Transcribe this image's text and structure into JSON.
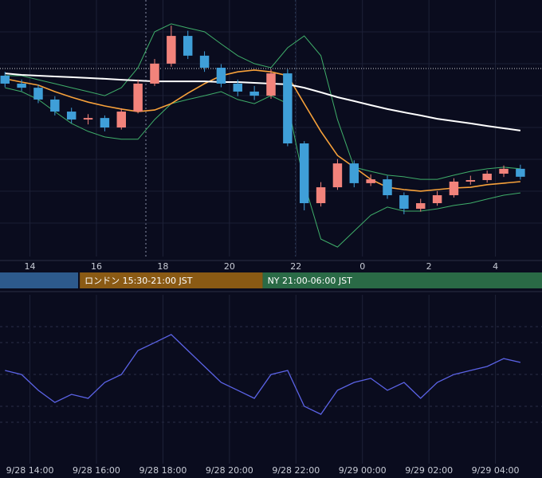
{
  "chart_data": [
    {
      "type": "candlestick",
      "x": [
        13.25,
        13.75,
        14.25,
        14.75,
        15.25,
        15.75,
        16.25,
        16.75,
        17.25,
        17.75,
        18.25,
        18.75,
        19.25,
        19.75,
        20.25,
        20.75,
        21.25,
        21.75,
        22.25,
        22.75,
        23.25,
        23.75,
        24.25,
        24.75,
        25.25,
        25.75,
        26.25,
        26.75,
        27.25,
        27.75,
        28.25,
        28.75
      ],
      "open": [
        70.5,
        67.4,
        65.8,
        61.2,
        56.5,
        53.4,
        54.0,
        50.3,
        56.5,
        67.4,
        75.2,
        86.0,
        78.3,
        73.6,
        67.4,
        64.3,
        62.7,
        71.4,
        44.1,
        20.8,
        27.0,
        36.3,
        28.6,
        30.1,
        23.9,
        18.6,
        20.8,
        23.9,
        29.2,
        29.8,
        32.3,
        34.2
      ],
      "high": [
        72.0,
        69.0,
        67.0,
        62.5,
        58.0,
        55.5,
        55.0,
        57.8,
        69.0,
        77.0,
        90.0,
        88.0,
        80.0,
        75.0,
        69.0,
        66.5,
        73.0,
        73.0,
        45.0,
        29.0,
        38.0,
        37.5,
        32.0,
        31.5,
        25.0,
        22.5,
        25.5,
        30.5,
        31.5,
        33.5,
        35.5,
        35.8
      ],
      "low": [
        66.0,
        64.5,
        59.8,
        55.0,
        52.0,
        51.5,
        48.8,
        49.5,
        55.8,
        66.5,
        74.0,
        77.0,
        72.0,
        66.0,
        62.5,
        61.0,
        61.5,
        43.0,
        18.0,
        19.5,
        26.0,
        27.0,
        27.5,
        22.5,
        16.5,
        17.5,
        19.8,
        23.0,
        28.0,
        28.8,
        31.0,
        30.0
      ],
      "close": [
        67.4,
        65.8,
        61.2,
        56.5,
        53.4,
        54.0,
        50.3,
        56.5,
        67.4,
        75.2,
        86.0,
        78.3,
        73.6,
        67.4,
        64.3,
        62.7,
        71.4,
        44.1,
        20.8,
        27.0,
        36.3,
        28.6,
        30.1,
        23.9,
        18.6,
        20.8,
        23.9,
        29.2,
        29.8,
        32.3,
        34.2,
        31.1
      ],
      "up_color": "#f2837b",
      "down_color": "#3f9fd8",
      "overlays": [
        {
          "color": "#3fae6a",
          "values": [
            70.5,
            70.5,
            68.9,
            67.4,
            65.8,
            64.3,
            62.7,
            65.8,
            73.6,
            87.6,
            90.7,
            89.1,
            87.6,
            82.9,
            78.3,
            75.2,
            73.6,
            81.4,
            86.0,
            78.3,
            53.4,
            34.8,
            33.2,
            31.7,
            31.1,
            30.1,
            30.1,
            31.7,
            33.2,
            34.2,
            34.8,
            34.2
          ]
        },
        {
          "color": "#3fae6a",
          "values": [
            65.8,
            64.3,
            61.2,
            56.5,
            51.9,
            48.8,
            46.6,
            45.7,
            45.7,
            53.4,
            59.6,
            61.2,
            62.7,
            64.3,
            61.2,
            59.6,
            62.7,
            59.6,
            28.6,
            6.8,
            3.7,
            9.9,
            16.1,
            19.3,
            17.7,
            17.7,
            18.6,
            19.9,
            20.8,
            22.4,
            23.9,
            24.8
          ]
        },
        {
          "color": "#f7a13a",
          "values": [
            69.3,
            68.0,
            66.8,
            64.3,
            62.1,
            60.2,
            58.7,
            57.5,
            56.5,
            57.1,
            59.6,
            63.7,
            67.4,
            70.5,
            72.0,
            72.7,
            72.0,
            70.5,
            59.6,
            48.8,
            39.4,
            34.8,
            30.1,
            27.0,
            26.1,
            25.5,
            26.1,
            26.7,
            27.0,
            28.0,
            28.6,
            29.2
          ]
        },
        {
          "color": "#ffffff",
          "values": [
            71.4,
            70.8,
            70.5,
            70.2,
            69.9,
            69.6,
            69.3,
            68.9,
            68.6,
            68.3,
            68.3,
            68.3,
            68.3,
            68.0,
            68.0,
            67.7,
            67.4,
            67.1,
            65.8,
            64.0,
            62.1,
            60.6,
            59.0,
            57.5,
            56.2,
            55.0,
            53.7,
            52.8,
            51.9,
            50.9,
            50.0,
            49.1
          ]
        }
      ],
      "xlim": [
        13.1,
        29.4
      ],
      "ylim": [
        0,
        100
      ],
      "xticks": [
        14,
        16,
        18,
        20,
        22,
        {
          "value": 24,
          "label": "0"
        },
        {
          "value": 26,
          "label": "2"
        },
        {
          "value": 28,
          "label": "4"
        }
      ],
      "sessions": [
        {
          "label": "ロンドン 15:30-21:00 JST",
          "start": 15.5,
          "end": 21,
          "color": "#8a5a14"
        },
        {
          "label": "NY 21:00-06:00 JST",
          "start": 21,
          "end": 30,
          "color": "#2a6a46"
        }
      ]
    },
    {
      "type": "line",
      "x": [
        13.25,
        13.75,
        14.25,
        14.75,
        15.25,
        15.75,
        16.25,
        16.75,
        17.25,
        17.75,
        18.25,
        18.75,
        19.25,
        19.75,
        20.25,
        20.75,
        21.25,
        21.75,
        22.25,
        22.75,
        23.25,
        23.75,
        24.25,
        24.75,
        25.25,
        25.75,
        26.25,
        26.75,
        27.25,
        27.75,
        28.25,
        28.75
      ],
      "color": "#5b63e6",
      "values": [
        56.8,
        54.5,
        45.5,
        38.6,
        43.2,
        40.9,
        50.0,
        54.5,
        68.2,
        72.7,
        77.3,
        68.2,
        59.1,
        50.0,
        45.5,
        40.9,
        54.5,
        56.8,
        36.4,
        31.8,
        45.5,
        50.0,
        52.3,
        45.5,
        50.0,
        40.9,
        50.0,
        54.5,
        56.8,
        59.1,
        63.6,
        61.4
      ],
      "xlim": [
        13.1,
        29.4
      ],
      "ylim": [
        0,
        100
      ],
      "xticks": [
        {
          "value": 14,
          "label": "9/28 14:00"
        },
        {
          "value": 16,
          "label": "9/28 16:00"
        },
        {
          "value": 18,
          "label": "9/28 18:00"
        },
        {
          "value": 20,
          "label": "9/28 20:00"
        },
        {
          "value": 22,
          "label": "9/28 22:00"
        },
        {
          "value": 24,
          "label": "9/29 00:00"
        },
        {
          "value": 26,
          "label": "9/29 02:00"
        },
        {
          "value": 28,
          "label": "9/29 04:00"
        }
      ]
    }
  ]
}
